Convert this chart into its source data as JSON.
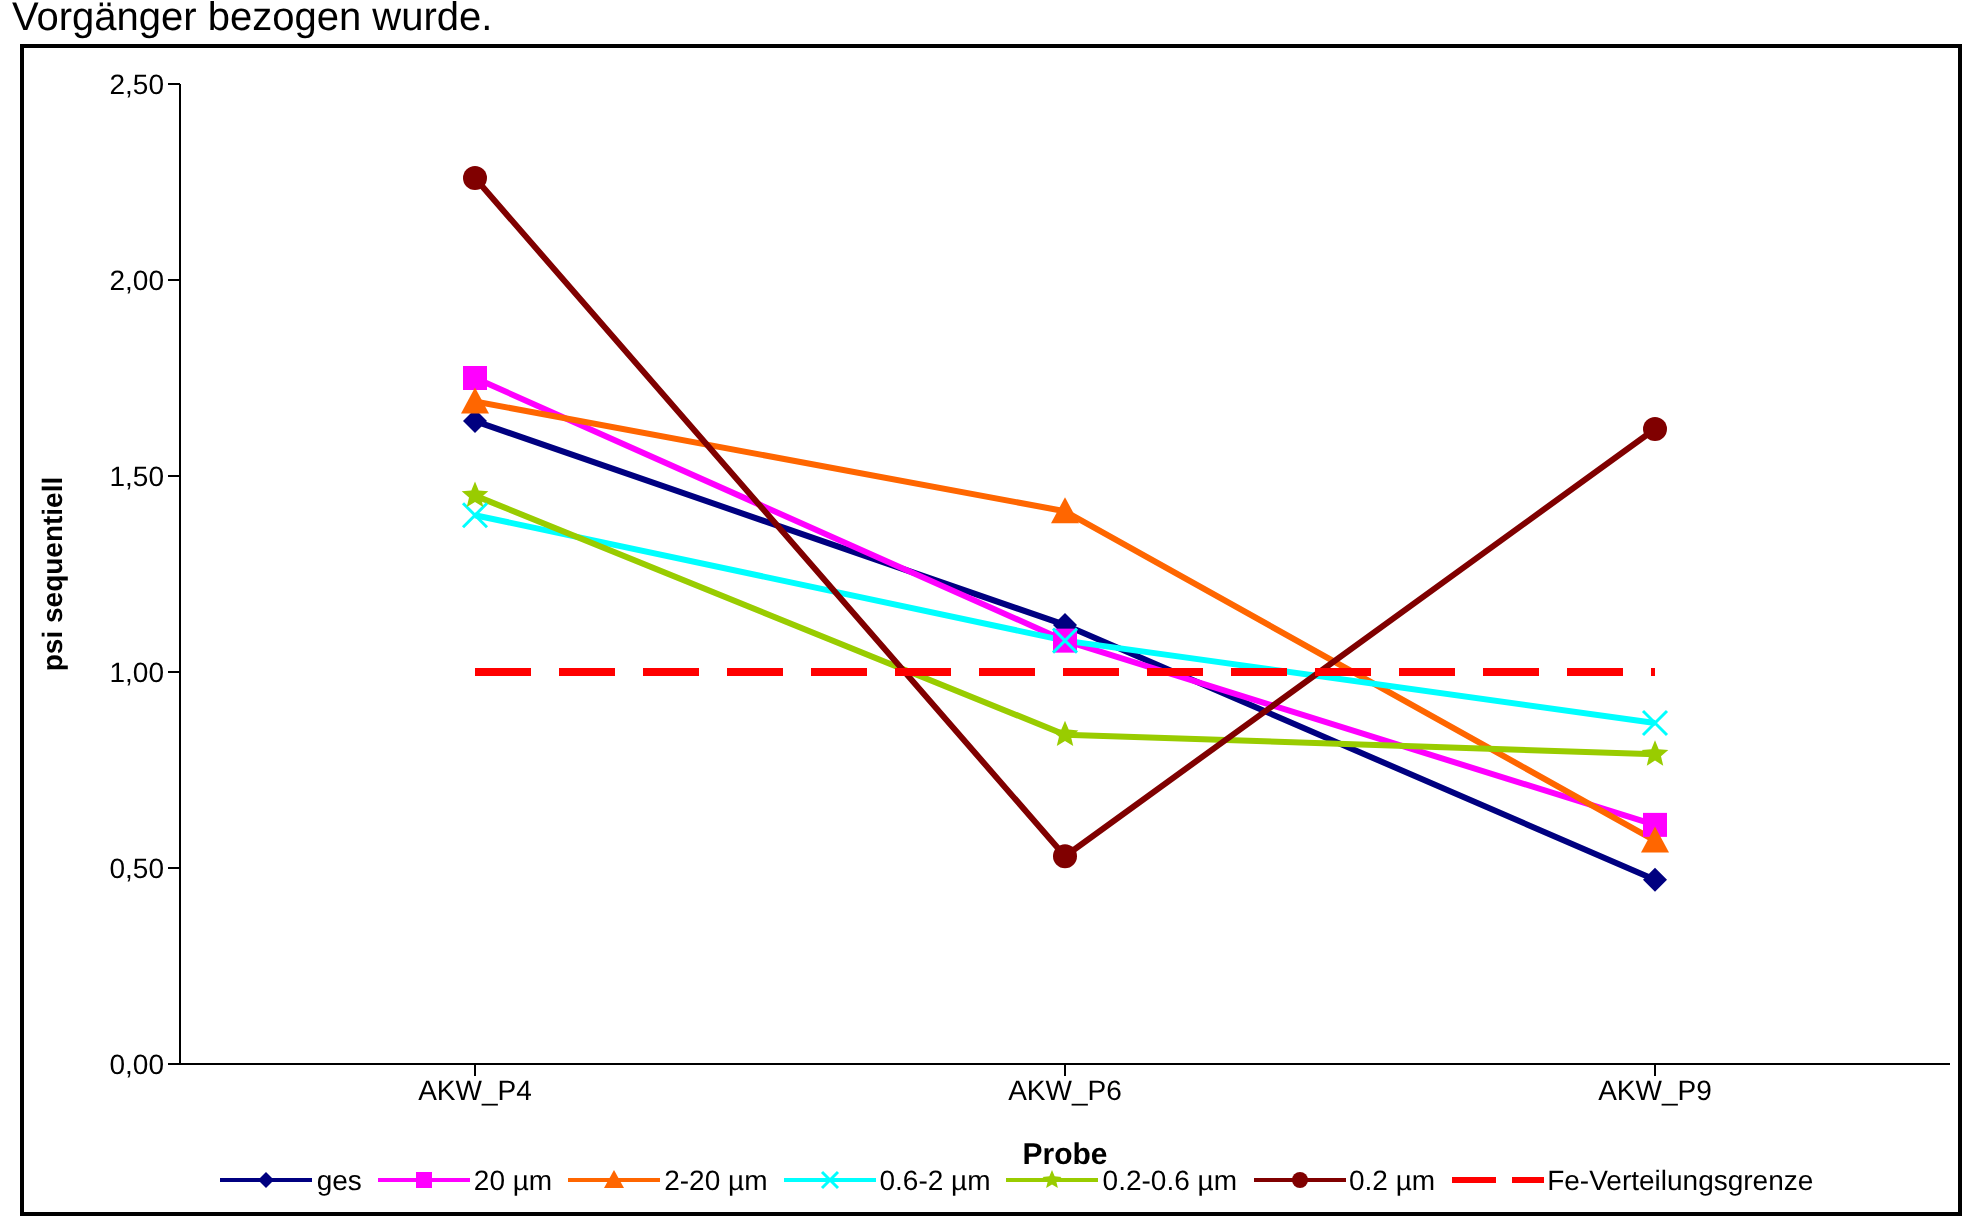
{
  "chart_data": {
    "type": "line",
    "annotations": [
      "Vorgänger bezogen wurde."
    ],
    "xlabel": "Probe",
    "ylabel": "psi sequentiell",
    "categories": [
      "AKW_P4",
      "AKW_P6",
      "AKW_P9"
    ],
    "series": [
      {
        "name": "ges",
        "color": "#000080",
        "values": [
          1.64,
          1.12,
          0.47
        ],
        "marker": "diamond"
      },
      {
        "name": "20 µm",
        "color": "#ff00ff",
        "values": [
          1.75,
          1.08,
          0.61
        ],
        "marker": "square"
      },
      {
        "name": "2-20 µm",
        "color": "#ff6600",
        "values": [
          1.69,
          1.41,
          0.57
        ],
        "marker": "triangle"
      },
      {
        "name": "0.6-2 µm",
        "color": "#00ffff",
        "values": [
          1.4,
          1.08,
          0.87
        ],
        "marker": "cross"
      },
      {
        "name": "0.2-0.6 µm",
        "color": "#99cc00",
        "values": [
          1.45,
          0.84,
          0.79
        ],
        "marker": "star"
      },
      {
        "name": "0.2 µm",
        "color": "#800000",
        "values": [
          2.26,
          0.53,
          1.62
        ],
        "marker": "circle"
      },
      {
        "name": "Fe-Verteilungsgrenze",
        "color": "#ff0000",
        "values": [
          1.0,
          1.0,
          1.0
        ],
        "marker": "none",
        "line_style": "dashed"
      }
    ],
    "ylim": [
      0,
      2.5
    ],
    "yticks": [
      {
        "value": 0,
        "label": "0,00"
      },
      {
        "value": 0.5,
        "label": "0,50"
      },
      {
        "value": 1,
        "label": "1,00"
      },
      {
        "value": 1.5,
        "label": "1,50"
      },
      {
        "value": 2,
        "label": "2,00"
      },
      {
        "value": 2.5,
        "label": "2,50"
      }
    ],
    "grid": false,
    "legend": "bottom"
  }
}
